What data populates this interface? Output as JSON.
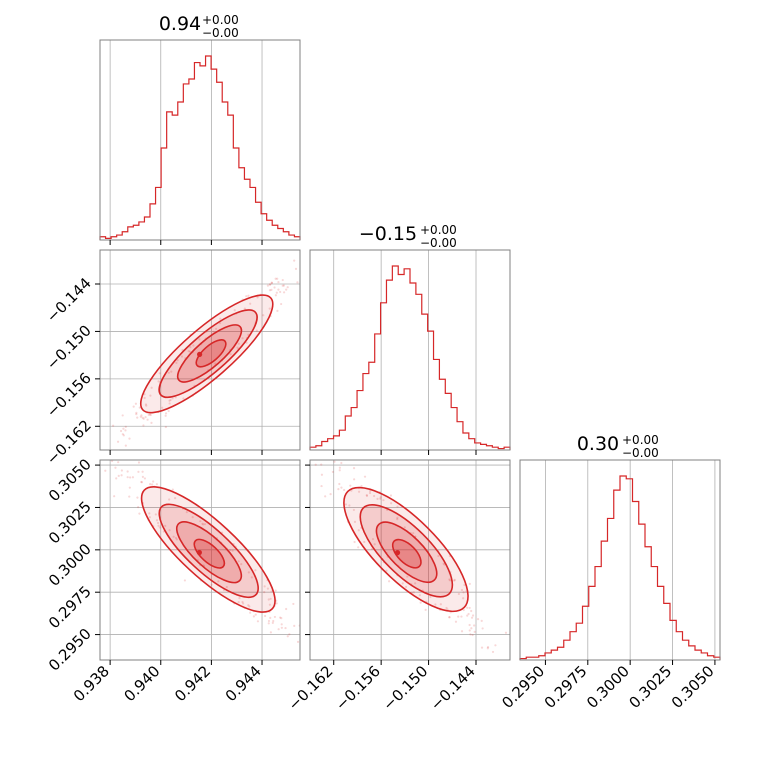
{
  "colors": {
    "line": "#d62728",
    "fill": "#d62728",
    "grid": "#b0b0b0",
    "frame": "#808080"
  },
  "chart_data": {
    "type": "corner",
    "parameters": [
      {
        "title_value": "0.94",
        "title_plus": "+0.00",
        "title_minus": "−0.00",
        "range": [
          0.9376,
          0.9455
        ],
        "ticks": [
          0.938,
          0.94,
          0.942,
          0.944
        ],
        "tick_labels": [
          "0.938",
          "0.940",
          "0.942",
          "0.944"
        ],
        "mean": 0.9419,
        "std": 0.0011
      },
      {
        "title_value": "−0.15",
        "title_plus": "+0.00",
        "title_minus": "−0.00",
        "range": [
          -0.165,
          -0.1397
        ],
        "ticks": [
          -0.162,
          -0.156,
          -0.15,
          -0.144
        ],
        "tick_labels": [
          "−0.162",
          "−0.156",
          "−0.150",
          "−0.144"
        ],
        "mean": -0.1528,
        "std": 0.0032
      },
      {
        "title_value": "0.30",
        "title_plus": "+0.00",
        "title_minus": "−0.00",
        "range": [
          0.2935,
          0.3053
        ],
        "ticks": [
          0.295,
          0.2975,
          0.3,
          0.3025,
          0.305
        ],
        "tick_labels": [
          "0.2950",
          "0.2975",
          "0.3000",
          "0.3025",
          "0.3050"
        ],
        "mean": 0.2999,
        "std": 0.0016
      }
    ],
    "histograms": [
      {
        "param": 0,
        "counts": [
          2,
          1,
          2,
          3,
          5,
          8,
          9,
          11,
          14,
          22,
          32,
          56,
          78,
          76,
          84,
          95,
          98,
          108,
          106,
          112,
          104,
          96,
          84,
          76,
          56,
          44,
          37,
          32,
          23,
          16,
          12,
          9,
          7,
          5,
          3,
          2
        ]
      },
      {
        "param": 1,
        "counts": [
          2,
          3,
          6,
          8,
          10,
          14,
          24,
          30,
          42,
          54,
          62,
          82,
          104,
          120,
          130,
          124,
          128,
          118,
          110,
          96,
          84,
          64,
          50,
          40,
          30,
          20,
          12,
          8,
          5,
          4,
          3,
          2,
          1,
          2
        ]
      },
      {
        "param": 2,
        "counts": [
          1,
          2,
          2,
          3,
          5,
          7,
          9,
          14,
          20,
          26,
          38,
          52,
          66,
          84,
          100,
          120,
          130,
          128,
          112,
          96,
          80,
          66,
          52,
          40,
          28,
          20,
          14,
          10,
          7,
          5,
          3,
          2
        ]
      }
    ],
    "pairs": [
      {
        "x": 0,
        "y": 1,
        "correlation": 0.96
      },
      {
        "x": 0,
        "y": 2,
        "correlation": -0.95
      },
      {
        "x": 1,
        "y": 2,
        "correlation": -0.93
      }
    ],
    "grid": true
  }
}
